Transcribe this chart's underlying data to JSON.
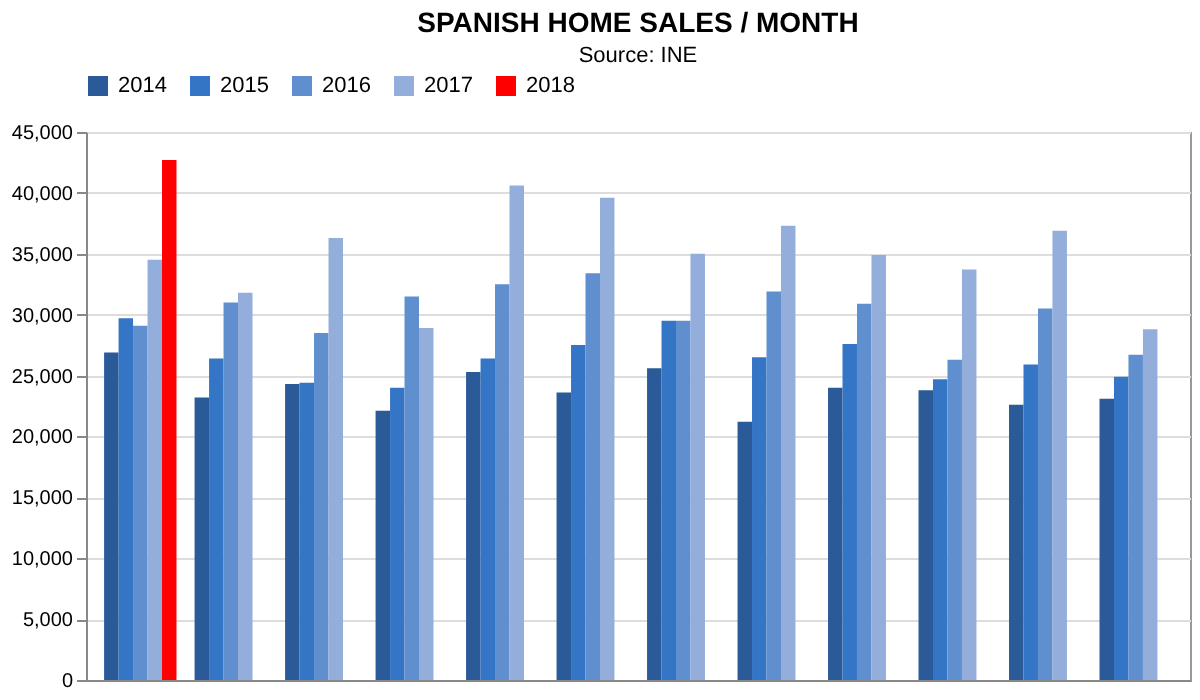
{
  "chart_data": {
    "type": "bar",
    "title": "SPANISH HOME SALES / MONTH",
    "subtitle": "Source: INE",
    "categories": [
      null,
      null,
      null,
      null,
      null,
      null,
      null,
      null,
      null,
      null,
      null,
      null
    ],
    "series": [
      {
        "name": "2014",
        "color": "#2a5a97",
        "values": [
          26900,
          23200,
          24300,
          22100,
          25300,
          23600,
          25600,
          21200,
          24000,
          23800,
          22600,
          23100
        ]
      },
      {
        "name": "2015",
        "color": "#3575c5",
        "values": [
          29700,
          26400,
          24400,
          24000,
          26400,
          27500,
          29500,
          26500,
          27600,
          24700,
          25900,
          24900
        ]
      },
      {
        "name": "2016",
        "color": "#5f8fcf",
        "values": [
          29100,
          31000,
          28500,
          31500,
          32500,
          33400,
          29500,
          31900,
          30900,
          26300,
          30500,
          26700
        ]
      },
      {
        "name": "2017",
        "color": "#93aedb",
        "values": [
          34500,
          31800,
          36300,
          28900,
          40600,
          39600,
          35000,
          37300,
          34900,
          33700,
          36900,
          28800
        ]
      },
      {
        "name": "2018",
        "color": "#ff0000",
        "values": [
          42700,
          null,
          null,
          null,
          null,
          null,
          null,
          null,
          null,
          null,
          null,
          null
        ]
      }
    ],
    "ylim": [
      0,
      45000
    ],
    "yticks": [
      0,
      {
        "value": 5000,
        "label": "5,000"
      },
      {
        "value": 10000,
        "label": "10,000"
      },
      {
        "value": 15000,
        "label": "15,000"
      },
      {
        "value": 20000,
        "label": "20,000"
      },
      {
        "value": 25000,
        "label": "25,000"
      },
      {
        "value": 30000,
        "label": "30,000"
      },
      {
        "value": 35000,
        "label": "35,000"
      },
      {
        "value": 40000,
        "label": "40,000"
      },
      {
        "value": 45000,
        "label": "45,000"
      }
    ],
    "grid": "y",
    "legend": "top"
  }
}
